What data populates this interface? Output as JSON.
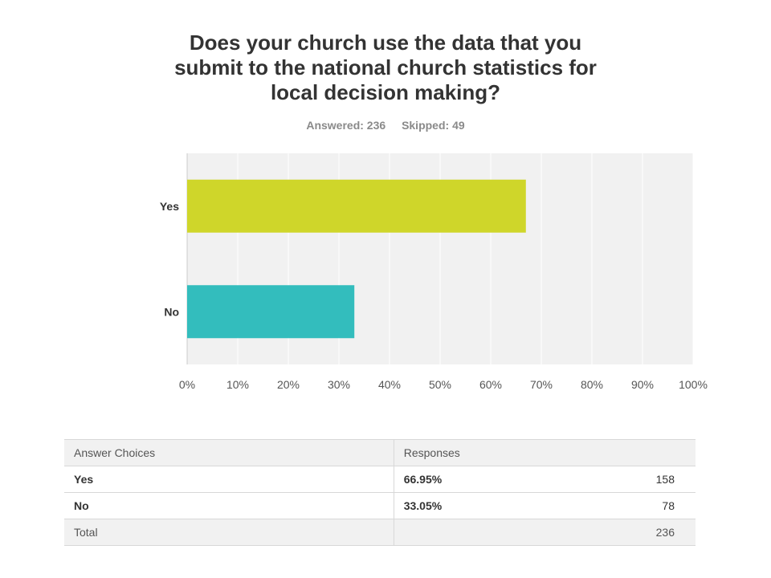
{
  "title_lines": [
    "Does your church use the data that you",
    "submit to the national church statistics for",
    "local decision making?"
  ],
  "answered": "Answered: 236",
  "skipped": "Skipped: 49",
  "chart_data": {
    "type": "bar",
    "orientation": "horizontal",
    "categories": [
      "Yes",
      "No"
    ],
    "values": [
      66.95,
      33.05
    ],
    "colors": [
      "#cfd62a",
      "#33bdbd"
    ],
    "xlim": [
      0,
      100
    ],
    "xticks": [
      "0%",
      "10%",
      "20%",
      "30%",
      "40%",
      "50%",
      "60%",
      "70%",
      "80%",
      "90%",
      "100%"
    ],
    "grid": true
  },
  "table": {
    "headers": [
      "Answer Choices",
      "Responses",
      ""
    ],
    "rows": [
      {
        "choice": "Yes",
        "percent": "66.95%",
        "count": "158"
      },
      {
        "choice": "No",
        "percent": "33.05%",
        "count": "78"
      }
    ],
    "total_label": "Total",
    "total_value": "236"
  }
}
